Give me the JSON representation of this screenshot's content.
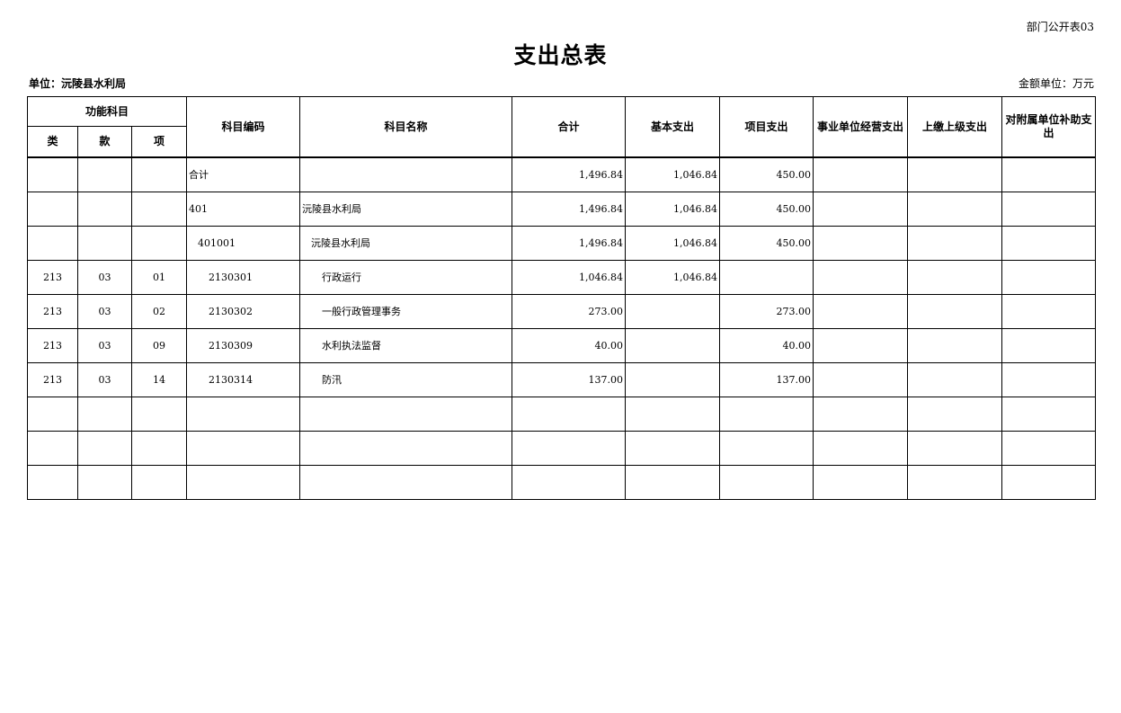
{
  "form_no": "部门公开表03",
  "title": "支出总表",
  "unit": "单位：沅陵县水利局",
  "amount_unit": "金额单位：万元",
  "headers": {
    "function_group": "功能科目",
    "lei": "类",
    "kuan": "款",
    "xiang": "项",
    "code": "科目编码",
    "name": "科目名称",
    "total": "合计",
    "basic": "基本支出",
    "project": "项目支出",
    "business": "事业单位经营支出",
    "upper": "上缴上级支出",
    "subsidy": "对附属单位补助支出"
  },
  "rows": [
    {
      "lei": "",
      "kuan": "",
      "xiang": "",
      "code": "合计",
      "name": "",
      "total": "1,496.84",
      "basic": "1,046.84",
      "project": "450.00",
      "business": "",
      "upper": "",
      "subsidy": "",
      "indent": 0
    },
    {
      "lei": "",
      "kuan": "",
      "xiang": "",
      "code": "401",
      "name": "沅陵县水利局",
      "total": "1,496.84",
      "basic": "1,046.84",
      "project": "450.00",
      "business": "",
      "upper": "",
      "subsidy": "",
      "indent": 0
    },
    {
      "lei": "",
      "kuan": "",
      "xiang": "",
      "code": "401001",
      "name": "沅陵县水利局",
      "total": "1,496.84",
      "basic": "1,046.84",
      "project": "450.00",
      "business": "",
      "upper": "",
      "subsidy": "",
      "indent": 1
    },
    {
      "lei": "213",
      "kuan": "03",
      "xiang": "01",
      "code": "2130301",
      "name": "行政运行",
      "total": "1,046.84",
      "basic": "1,046.84",
      "project": "",
      "business": "",
      "upper": "",
      "subsidy": "",
      "indent": 2
    },
    {
      "lei": "213",
      "kuan": "03",
      "xiang": "02",
      "code": "2130302",
      "name": "一般行政管理事务",
      "total": "273.00",
      "basic": "",
      "project": "273.00",
      "business": "",
      "upper": "",
      "subsidy": "",
      "indent": 2
    },
    {
      "lei": "213",
      "kuan": "03",
      "xiang": "09",
      "code": "2130309",
      "name": "水利执法监督",
      "total": "40.00",
      "basic": "",
      "project": "40.00",
      "business": "",
      "upper": "",
      "subsidy": "",
      "indent": 2
    },
    {
      "lei": "213",
      "kuan": "03",
      "xiang": "14",
      "code": "2130314",
      "name": "防汛",
      "total": "137.00",
      "basic": "",
      "project": "137.00",
      "business": "",
      "upper": "",
      "subsidy": "",
      "indent": 2
    },
    {
      "lei": "",
      "kuan": "",
      "xiang": "",
      "code": "",
      "name": "",
      "total": "",
      "basic": "",
      "project": "",
      "business": "",
      "upper": "",
      "subsidy": "",
      "indent": 0
    },
    {
      "lei": "",
      "kuan": "",
      "xiang": "",
      "code": "",
      "name": "",
      "total": "",
      "basic": "",
      "project": "",
      "business": "",
      "upper": "",
      "subsidy": "",
      "indent": 0
    },
    {
      "lei": "",
      "kuan": "",
      "xiang": "",
      "code": "",
      "name": "",
      "total": "",
      "basic": "",
      "project": "",
      "business": "",
      "upper": "",
      "subsidy": "",
      "indent": 0
    }
  ]
}
